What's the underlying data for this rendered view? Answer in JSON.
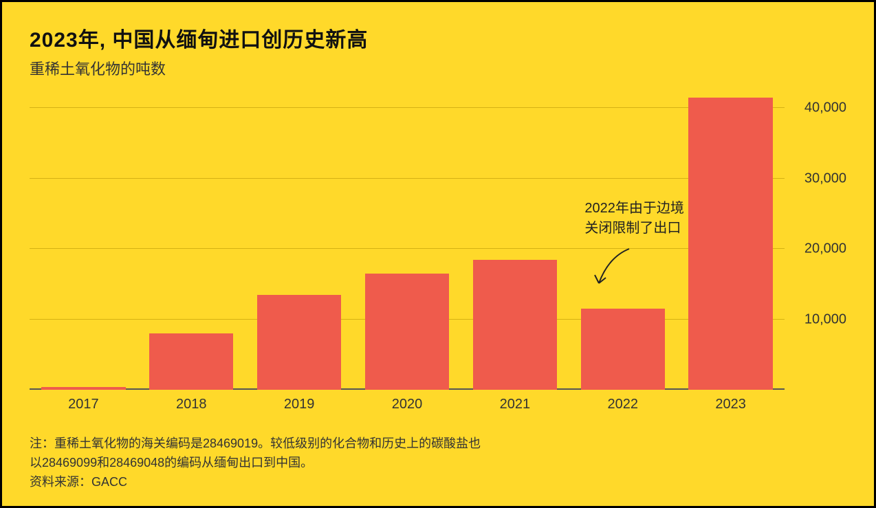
{
  "chart": {
    "type": "bar",
    "title": "2023年, 中国从缅甸进口创历史新高",
    "subtitle": "重稀土氧化物的吨数",
    "categories": [
      "2017",
      "2018",
      "2019",
      "2020",
      "2021",
      "2022",
      "2023"
    ],
    "values": [
      400,
      8000,
      13500,
      16500,
      18500,
      11500,
      41500
    ],
    "bar_color": "#ef5b4c",
    "background_color": "#ffd92a",
    "border_color": "#000000",
    "grid_color": "#b38f00",
    "ylim": [
      0,
      42000
    ],
    "yticks": [
      10000,
      20000,
      30000,
      40000
    ],
    "ytick_labels": [
      "10,000",
      "20,000",
      "30,000",
      "40,000"
    ],
    "bar_width": 0.78,
    "title_fontsize": 30,
    "subtitle_fontsize": 22,
    "axis_label_fontsize": 20,
    "annotation": {
      "line1": "2022年由于边境",
      "line2": "关闭限制了出口",
      "target_category": "2022"
    },
    "footnote_line1": "注：重稀土氧化物的海关编码是28469019。较低级别的化合物和历史上的碳酸盐也",
    "footnote_line2": "以28469099和28469048的编码从缅甸出口到中国。",
    "source_label": "资料来源：GACC"
  }
}
